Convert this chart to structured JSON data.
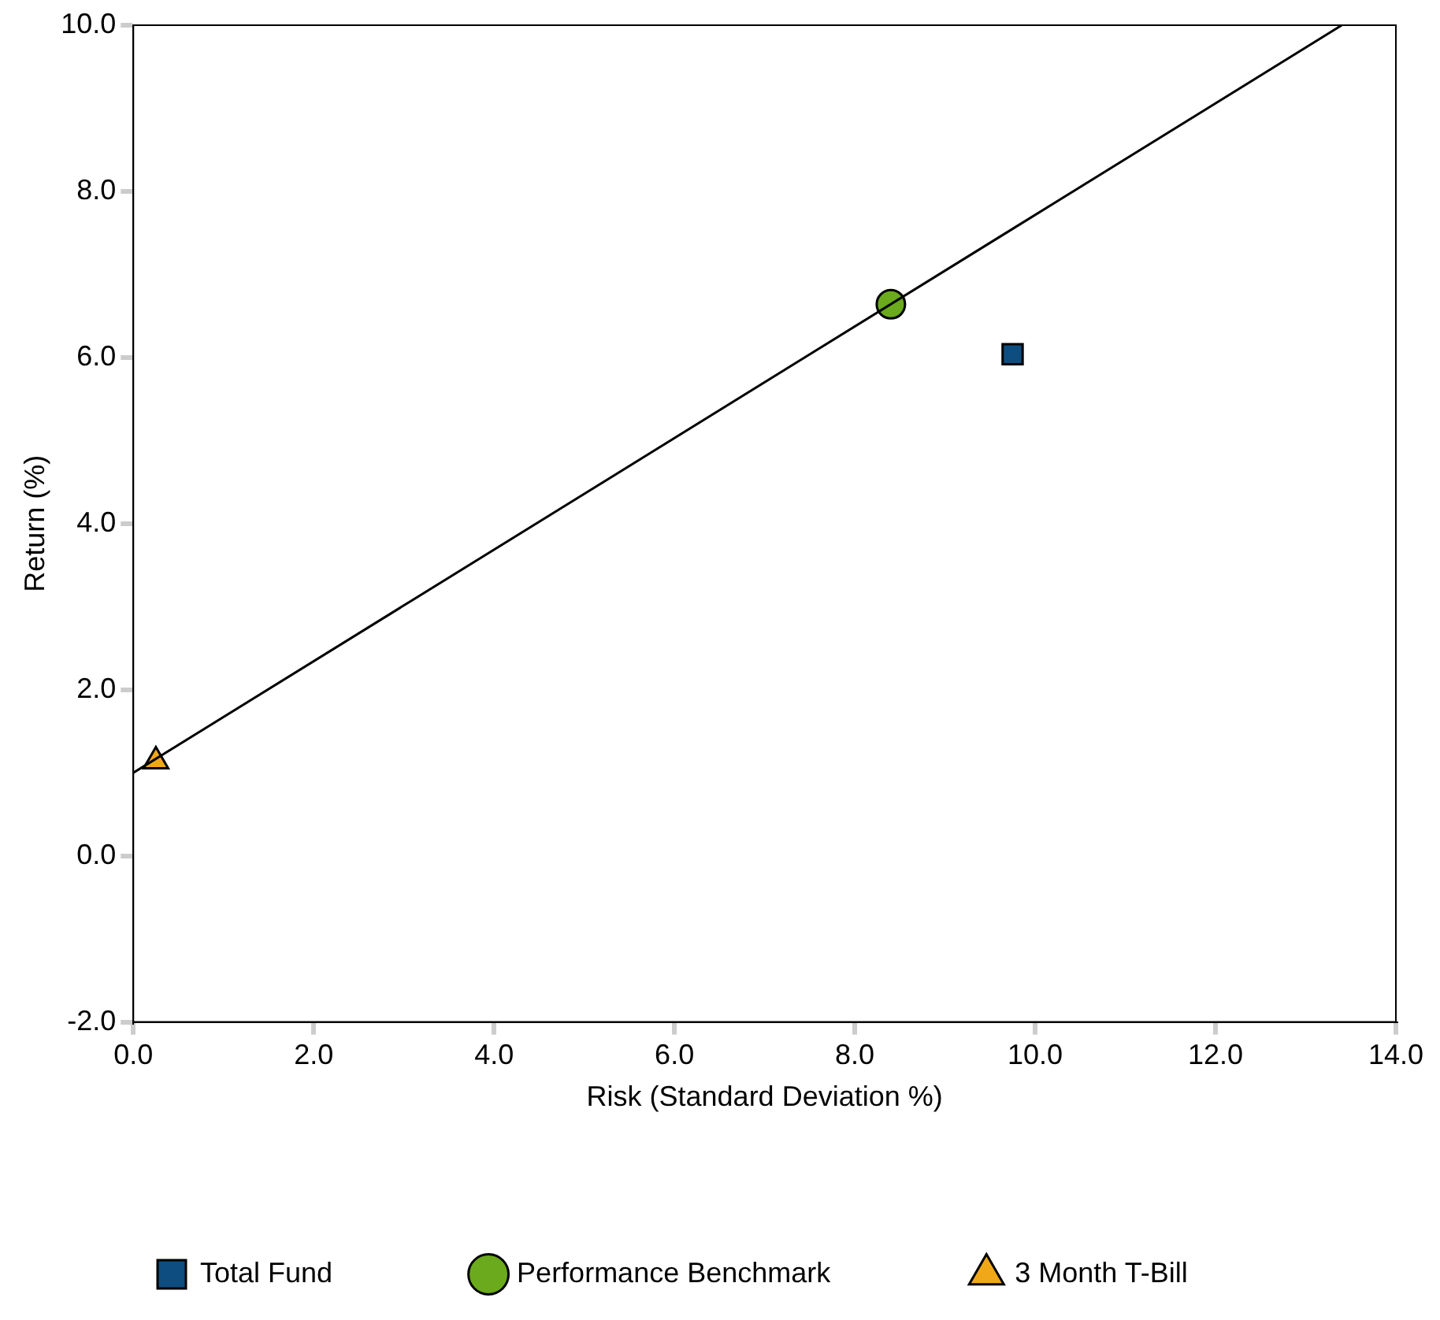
{
  "chart_data": {
    "type": "scatter",
    "xlabel": "Risk (Standard Deviation %)",
    "ylabel": "Return (%)",
    "xlim": [
      0,
      14
    ],
    "ylim": [
      -2,
      10
    ],
    "xticks": [
      {
        "value": 0,
        "label": "0.0"
      },
      {
        "value": 2,
        "label": "2.0"
      },
      {
        "value": 4,
        "label": "4.0"
      },
      {
        "value": 6,
        "label": "6.0"
      },
      {
        "value": 8,
        "label": "8.0"
      },
      {
        "value": 10,
        "label": "10.0"
      },
      {
        "value": 12,
        "label": "12.0"
      },
      {
        "value": 14,
        "label": "14.0"
      }
    ],
    "yticks": [
      {
        "value": -2,
        "label": "-2.0"
      },
      {
        "value": 0,
        "label": "0.0"
      },
      {
        "value": 2,
        "label": "2.0"
      },
      {
        "value": 4,
        "label": "4.0"
      },
      {
        "value": 6,
        "label": "6.0"
      },
      {
        "value": 8,
        "label": "8.0"
      },
      {
        "value": 10,
        "label": "10.0"
      }
    ],
    "grid": false,
    "legend": "bottom",
    "series": [
      {
        "type": "line",
        "x": [
          0,
          13.4
        ],
        "values": [
          1,
          10
        ],
        "color": "#000000",
        "marker": "none"
      },
      {
        "name": "Total Fund",
        "x": [
          9.75
        ],
        "values": [
          6.04
        ],
        "color": "#0e4d7f",
        "marker": "square"
      },
      {
        "name": "Performance Benchmark",
        "x": [
          8.4
        ],
        "values": [
          6.64
        ],
        "color": "#6aaa1c",
        "marker": "circle"
      },
      {
        "name": "3 Month T-Bill",
        "x": [
          0.25
        ],
        "values": [
          1.14
        ],
        "color": "#f0a818",
        "marker": "triangle"
      }
    ]
  }
}
